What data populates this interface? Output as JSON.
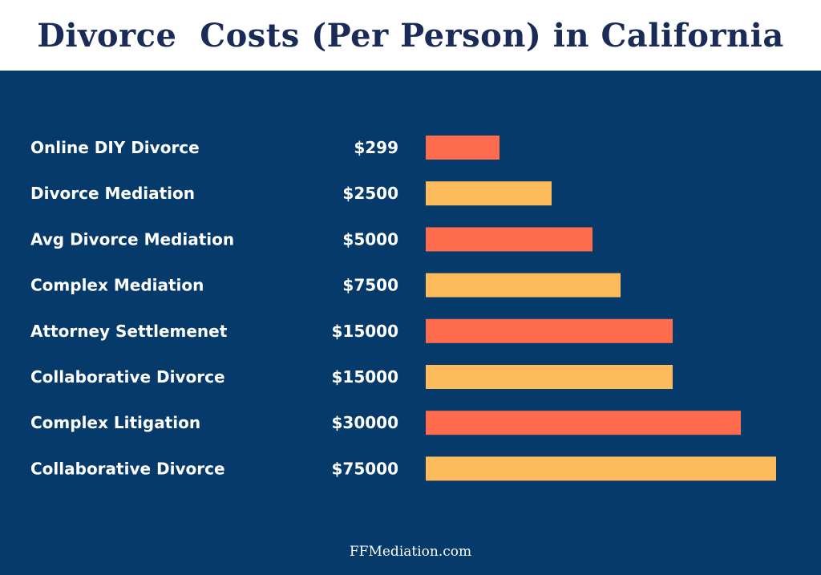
{
  "header": {
    "title": "Divorce  Costs (Per Person) in California"
  },
  "footer": {
    "text": "FFMediation.com"
  },
  "colors": {
    "background": "#063a6b",
    "header_background": "#ffffff",
    "title_text": "#1a2b57",
    "bar_coral": "#ff6b4d",
    "bar_gold": "#fdbb5c",
    "label_text": "#ffffff"
  },
  "chart_data": {
    "type": "bar",
    "orientation": "horizontal",
    "title": "Divorce  Costs (Per Person) in California",
    "categories": [
      "Online DIY Divorce",
      "Divorce Mediation",
      "Avg Divorce Mediation",
      "Complex Mediation",
      "Attorney Settlemenet",
      "Collaborative Divorce",
      "Complex Litigation",
      "Collaborative Divorce"
    ],
    "value_labels": [
      "$299",
      "$2500",
      "$5000",
      "$7500",
      "$15000",
      "$15000",
      "$30000",
      "$75000"
    ],
    "values": [
      299,
      2500,
      5000,
      7500,
      15000,
      15000,
      30000,
      75000
    ],
    "bar_colors": [
      "#ff6b4d",
      "#fdbb5c",
      "#ff6b4d",
      "#fdbb5c",
      "#ff6b4d",
      "#fdbb5c",
      "#ff6b4d",
      "#fdbb5c"
    ],
    "grid": false,
    "legend": "none",
    "scale": "non-linear (bars drawn as shown in source graphic)",
    "bar_length_fractions": [
      0.21,
      0.36,
      0.475,
      0.555,
      0.705,
      0.705,
      0.9,
      1.0
    ]
  }
}
